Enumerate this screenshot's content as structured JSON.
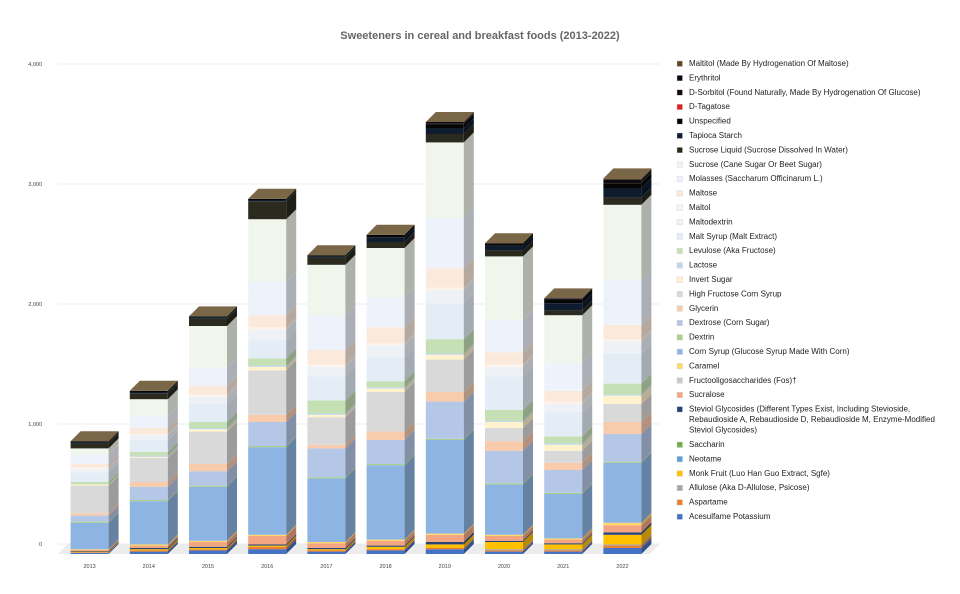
{
  "chart_data": {
    "type": "bar",
    "stacked": true,
    "title": "Sweeteners in cereal and breakfast foods (2013-2022)",
    "xlabel": "",
    "ylabel": "",
    "ylim": [
      0,
      4000
    ],
    "yticks": [
      "0",
      "1,000",
      "2,000",
      "3,000",
      "4,000"
    ],
    "ytick_values": [
      0,
      1000,
      2000,
      3000,
      4000
    ],
    "grid": true,
    "legend_position": "right",
    "categories": [
      "2013",
      "2014",
      "2015",
      "2016",
      "2017",
      "2018",
      "2019",
      "2020",
      "2021",
      "2022"
    ],
    "series": [
      {
        "name": "Acesulfame Potassium",
        "color": "#4472c4",
        "values": [
          10,
          20,
          30,
          40,
          20,
          30,
          40,
          20,
          20,
          50
        ]
      },
      {
        "name": "Aspartame",
        "color": "#ed7d31",
        "values": [
          5,
          10,
          10,
          20,
          10,
          10,
          10,
          10,
          10,
          20
        ]
      },
      {
        "name": "Allulose (Aka D-Allulose, Psicose)",
        "color": "#a5a5a5",
        "values": [
          0,
          0,
          0,
          0,
          0,
          0,
          0,
          10,
          10,
          10
        ]
      },
      {
        "name": "Monk Fruit (Luo Han Guo Extract, Sgfe)",
        "color": "#ffc000",
        "values": [
          5,
          10,
          10,
          10,
          10,
          20,
          30,
          60,
          40,
          80
        ]
      },
      {
        "name": "Neotame",
        "color": "#5b9bd5",
        "values": [
          0,
          0,
          0,
          0,
          0,
          0,
          0,
          0,
          0,
          0
        ]
      },
      {
        "name": "Saccharin",
        "color": "#70ad47",
        "values": [
          0,
          0,
          0,
          0,
          0,
          0,
          0,
          0,
          0,
          0
        ]
      },
      {
        "name": "Steviol Glycosides (Different Types Exist, Including Stevioside, Rebaudioside A, Rebaudioside D, Rebaudioside M, Enzyme-Modified Steviol Glycosides)",
        "color": "#264478",
        "values": [
          5,
          10,
          10,
          10,
          10,
          10,
          20,
          10,
          10,
          20
        ]
      },
      {
        "name": "Sucralose",
        "color": "#f4a582",
        "values": [
          10,
          20,
          40,
          70,
          40,
          40,
          60,
          40,
          30,
          60
        ]
      },
      {
        "name": "Fructooligosaccharides (Fos)†",
        "color": "#c9c9c9",
        "values": [
          0,
          0,
          0,
          0,
          0,
          0,
          0,
          0,
          0,
          0
        ]
      },
      {
        "name": "Caramel",
        "color": "#ffd966",
        "values": [
          5,
          10,
          10,
          10,
          10,
          10,
          10,
          10,
          10,
          20
        ]
      },
      {
        "name": "Corn Syrup (Glucose Syrup Made With Corn)",
        "color": "#8db4e2",
        "values": [
          220,
          360,
          450,
          730,
          530,
          620,
          780,
          420,
          370,
          500
        ]
      },
      {
        "name": "Dextrin",
        "color": "#a9d18e",
        "values": [
          10,
          10,
          10,
          10,
          10,
          10,
          10,
          10,
          10,
          10
        ]
      },
      {
        "name": "Dextrose (Corn Sugar)",
        "color": "#b4c7e7",
        "values": [
          50,
          110,
          120,
          200,
          240,
          200,
          310,
          270,
          190,
          230
        ]
      },
      {
        "name": "Glycerin",
        "color": "#f8cbad",
        "values": [
          20,
          40,
          60,
          60,
          30,
          70,
          80,
          80,
          60,
          100
        ]
      },
      {
        "name": "High Fructose Corn Syrup",
        "color": "#d9d9d9",
        "values": [
          230,
          200,
          270,
          370,
          230,
          330,
          270,
          110,
          100,
          150
        ]
      },
      {
        "name": "Invert Sugar",
        "color": "#fff2cc",
        "values": [
          10,
          10,
          20,
          30,
          20,
          30,
          40,
          50,
          50,
          70
        ]
      },
      {
        "name": "Lactose",
        "color": "#bdd7ee",
        "values": [
          0,
          10,
          10,
          10,
          10,
          10,
          10,
          10,
          10,
          10
        ]
      },
      {
        "name": "Levulose (Aka Fructose)",
        "color": "#c5e0b4",
        "values": [
          20,
          30,
          50,
          60,
          110,
          50,
          120,
          90,
          60,
          90
        ]
      },
      {
        "name": "Malt Syrup (Malt Extract)",
        "color": "#e4ecf6",
        "values": [
          80,
          100,
          150,
          150,
          200,
          200,
          300,
          280,
          200,
          250
        ]
      },
      {
        "name": "Maltodextrin",
        "color": "#eef2f7",
        "values": [
          30,
          40,
          60,
          90,
          80,
          100,
          110,
          80,
          70,
          100
        ]
      },
      {
        "name": "Maltol",
        "color": "#fdf2ea",
        "values": [
          10,
          10,
          20,
          20,
          20,
          20,
          20,
          20,
          20,
          20
        ]
      },
      {
        "name": "Maltose",
        "color": "#fbe9db",
        "values": [
          30,
          50,
          70,
          100,
          120,
          130,
          160,
          100,
          90,
          120
        ]
      },
      {
        "name": "Molasses (Saccharum Officinarum L.)",
        "color": "#eef3fb",
        "values": [
          80,
          100,
          150,
          280,
          290,
          250,
          420,
          270,
          230,
          370
        ]
      },
      {
        "name": "Sucrose (Cane Sugar Or Beet Sugar)",
        "color": "#f0f6ec",
        "values": [
          50,
          140,
          350,
          520,
          420,
          410,
          630,
          530,
          400,
          630
        ]
      },
      {
        "name": "Sucrose Liquid (Sucrose Dissolved In Water)",
        "color": "#2a2a1e",
        "values": [
          40,
          50,
          60,
          150,
          60,
          50,
          70,
          50,
          40,
          60
        ]
      },
      {
        "name": "Tapioca Starch",
        "color": "#0e1c2e",
        "values": [
          10,
          10,
          10,
          10,
          10,
          40,
          50,
          40,
          60,
          80
        ]
      },
      {
        "name": "Unspecified",
        "color": "#050505",
        "values": [
          10,
          10,
          10,
          10,
          10,
          20,
          30,
          20,
          30,
          40
        ]
      },
      {
        "name": "D-Tagatose",
        "color": "#e02020",
        "values": [
          0,
          0,
          0,
          0,
          0,
          0,
          0,
          0,
          0,
          0
        ]
      },
      {
        "name": "D-Sorbitol (Found Naturally, Made By Hydrogenation Of Glucose)",
        "color": "#150b0b",
        "values": [
          0,
          0,
          0,
          0,
          0,
          0,
          10,
          0,
          0,
          10
        ]
      },
      {
        "name": "Erythritol",
        "color": "#0a0a14",
        "values": [
          0,
          0,
          0,
          0,
          0,
          0,
          10,
          0,
          10,
          20
        ]
      },
      {
        "name": "Maltitol (Made By Hydrogenation Of Maltose)",
        "color": "#5c4a24",
        "values": [
          0,
          0,
          0,
          0,
          0,
          0,
          0,
          0,
          0,
          10
        ]
      }
    ]
  }
}
